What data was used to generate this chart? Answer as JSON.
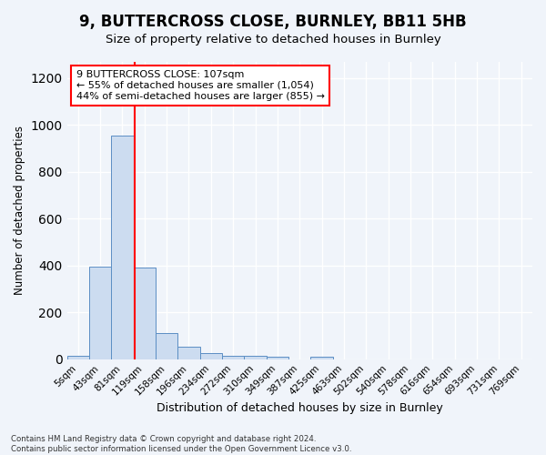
{
  "title": "9, BUTTERCROSS CLOSE, BURNLEY, BB11 5HB",
  "subtitle": "Size of property relative to detached houses in Burnley",
  "xlabel": "Distribution of detached houses by size in Burnley",
  "ylabel": "Number of detached properties",
  "bin_labels": [
    "5sqm",
    "43sqm",
    "81sqm",
    "119sqm",
    "158sqm",
    "196sqm",
    "234sqm",
    "272sqm",
    "310sqm",
    "349sqm",
    "387sqm",
    "425sqm",
    "463sqm",
    "502sqm",
    "540sqm",
    "578sqm",
    "616sqm",
    "654sqm",
    "693sqm",
    "731sqm",
    "769sqm"
  ],
  "bar_values": [
    15,
    395,
    955,
    390,
    110,
    52,
    28,
    15,
    13,
    10,
    0,
    10,
    0,
    0,
    0,
    0,
    0,
    0,
    0,
    0,
    0
  ],
  "bar_color": "#ccdcf0",
  "bar_edge_color": "#5b8ec4",
  "vline_position": 2.55,
  "vline_color": "red",
  "annotation_text": "9 BUTTERCROSS CLOSE: 107sqm\n← 55% of detached houses are smaller (1,054)\n44% of semi-detached houses are larger (855) →",
  "annotation_box_color": "white",
  "annotation_box_edge": "red",
  "ylim": [
    0,
    1270
  ],
  "yticks": [
    0,
    200,
    400,
    600,
    800,
    1000,
    1200
  ],
  "background_color": "#f0f4fa",
  "grid_color": "white",
  "footnote": "Contains HM Land Registry data © Crown copyright and database right 2024.\nContains public sector information licensed under the Open Government Licence v3.0."
}
